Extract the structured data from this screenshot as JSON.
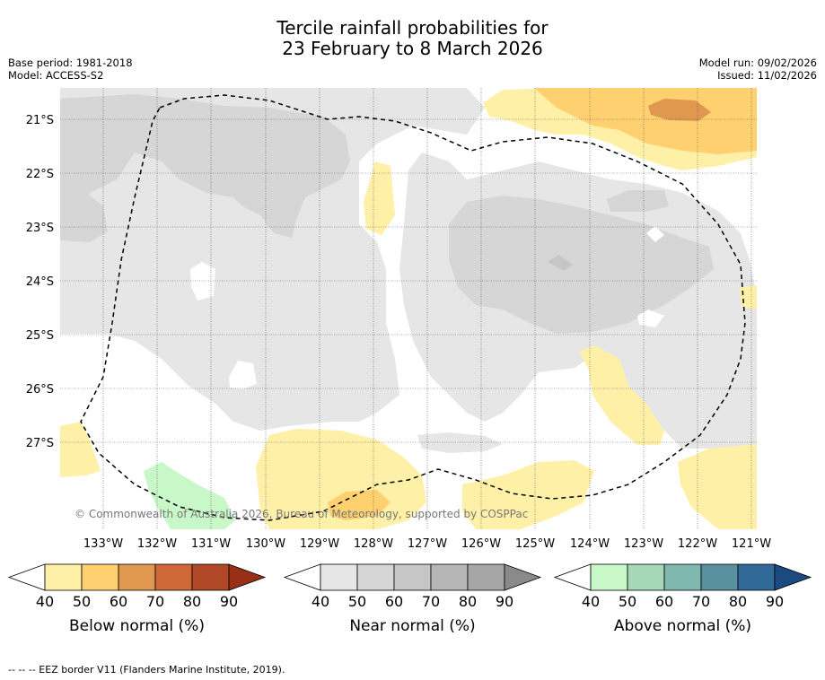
{
  "title_line1": "Tercile rainfall probabilities for",
  "title_line2": "23 February to 8 March 2026",
  "base_period": "Base period: 1981-2018",
  "model": "Model: ACCESS-S2",
  "model_run": "Model run: 09/02/2026",
  "issued": "Issued: 11/02/2026",
  "copyright": "© Commonwealth of Australia 2026, Bureau of Meteorology, supported by COSPPac",
  "lat_labels": [
    "21°S",
    "22°S",
    "23°S",
    "24°S",
    "25°S",
    "26°S",
    "27°S"
  ],
  "lon_labels": [
    "133°W",
    "132°W",
    "131°W",
    "130°W",
    "129°W",
    "128°W",
    "127°W",
    "126°W",
    "125°W",
    "124°W",
    "123°W",
    "122°W",
    "121°W"
  ],
  "colorbars": [
    {
      "label": "Below normal (%)",
      "ticks": [
        "40",
        "50",
        "60",
        "70",
        "80",
        "90"
      ],
      "colors": [
        "#fff0a8",
        "#ffd070",
        "#e09850",
        "#d06838",
        "#b04828",
        "#983018"
      ]
    },
    {
      "label": "Near normal (%)",
      "ticks": [
        "40",
        "50",
        "60",
        "70",
        "80",
        "90"
      ],
      "colors": [
        "#e6e6e6",
        "#d6d6d6",
        "#c6c6c6",
        "#b6b6b6",
        "#a6a6a6",
        "#8a8a8a"
      ]
    },
    {
      "label": "Above normal (%)",
      "ticks": [
        "40",
        "50",
        "60",
        "70",
        "80",
        "90"
      ],
      "colors": [
        "#c8f8c8",
        "#a6d8b8",
        "#80b8b0",
        "#5890a0",
        "#306898",
        "#1a4a80"
      ]
    }
  ],
  "eez_note": "--  --  -- EEZ border V11 (Flanders Marine Institute, 2019)."
}
